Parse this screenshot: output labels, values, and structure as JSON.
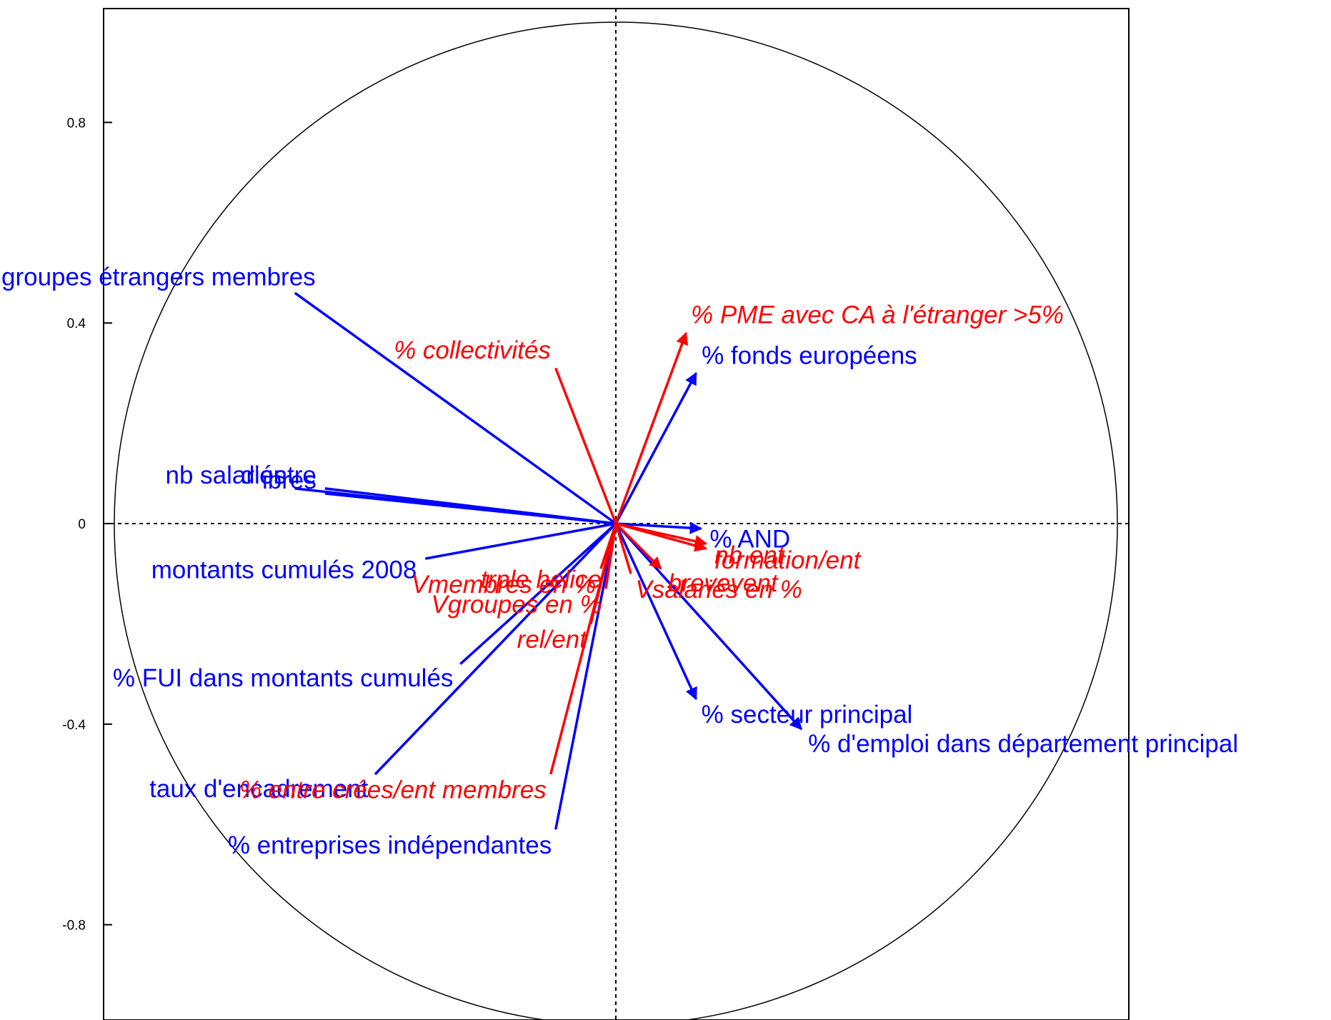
{
  "chart_data": {
    "type": "scatter",
    "subtype": "correlation-circle",
    "title": "",
    "xlabel": "",
    "ylabel": "",
    "xlim": [
      -1.02,
      1.02
    ],
    "ylim": [
      -1.02,
      1.02
    ],
    "grid": false,
    "zero_lines": "dashed",
    "y_ticks": [
      {
        "value": 0.8,
        "label": "0.8"
      },
      {
        "value": 0.4,
        "label": "0.4"
      },
      {
        "value": 0,
        "label": "0"
      },
      {
        "value": -0.4,
        "label": "-0.4"
      },
      {
        "value": -0.8,
        "label": "-0.8"
      }
    ],
    "series": [
      {
        "color": "#0000ff",
        "style": "normal",
        "points": [
          {
            "label": "groupes étrangers membres",
            "x": -0.64,
            "y": 0.46,
            "arrow": false
          },
          {
            "label": "% fonds européens",
            "x": 0.16,
            "y": 0.3,
            "arrow": true
          },
          {
            "label": "d'entre",
            "x": -0.58,
            "y": 0.07,
            "arrow": false
          },
          {
            "label": "nb salariés",
            "x": -0.64,
            "y": 0.07,
            "arrow": false
          },
          {
            "label": "ibres",
            "x": -0.58,
            "y": 0.06,
            "arrow": false
          },
          {
            "label": "% AND",
            "x": 0.17,
            "y": -0.01,
            "arrow": true
          },
          {
            "label": "montants cumulés 2008",
            "x": -0.38,
            "y": -0.07,
            "arrow": false
          },
          {
            "label": "% FUI dans montants cumulés",
            "x": -0.31,
            "y": -0.28,
            "arrow": false
          },
          {
            "label": "% secteur principal",
            "x": 0.16,
            "y": -0.35,
            "arrow": true
          },
          {
            "label": "% d'emploi dans département principal",
            "x": 0.37,
            "y": -0.41,
            "arrow": true
          },
          {
            "label": "taux d'encadrement",
            "x": -0.48,
            "y": -0.5,
            "arrow": false
          },
          {
            "label": "% entreprises indépendantes",
            "x": -0.12,
            "y": -0.61,
            "arrow": false
          }
        ]
      },
      {
        "color": "#ff0000",
        "style": "italic",
        "points": [
          {
            "label": "% PME avec CA à l'étranger >5%",
            "x": 0.14,
            "y": 0.38,
            "arrow": true
          },
          {
            "label": "% collectivités",
            "x": -0.12,
            "y": 0.31,
            "arrow": false
          },
          {
            "label": "formation/ent",
            "x": 0.18,
            "y": -0.05,
            "arrow": true
          },
          {
            "label": "nb ent",
            "x": 0.18,
            "y": -0.04,
            "arrow": true
          },
          {
            "label": "brevevent",
            "x": 0.09,
            "y": -0.09,
            "arrow": true
          },
          {
            "label": "trple helice",
            "x": -0.02,
            "y": -0.08,
            "arrow": false
          },
          {
            "label": "Vmembres en %",
            "x": -0.03,
            "y": -0.09,
            "arrow": false
          },
          {
            "label": "Vsalariés en %",
            "x": 0.03,
            "y": -0.1,
            "arrow": false
          },
          {
            "label": "Vgroupes en %",
            "x": -0.02,
            "y": -0.13,
            "arrow": false
          },
          {
            "label": "rel/ent",
            "x": -0.05,
            "y": -0.2,
            "arrow": false
          },
          {
            "label": "% entre crées/ent membres",
            "x": -0.13,
            "y": -0.5,
            "arrow": false
          }
        ]
      }
    ],
    "circle_radius": 1
  }
}
